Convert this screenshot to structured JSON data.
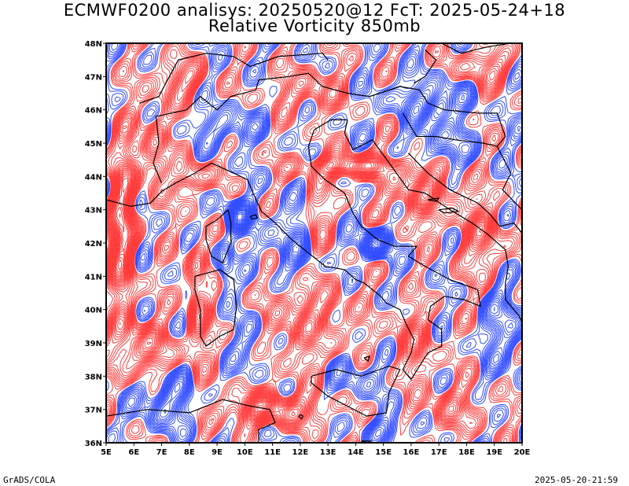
{
  "title_line1": "ECMWF0200 analisys: 20250520@12 FcT: 2025-05-24+18",
  "title_line2": "Relative Vorticity 850mb",
  "footer_left": "GrADS/COLA",
  "footer_right": "2025-05-20-21:59",
  "map": {
    "lon_range": [
      5,
      20
    ],
    "lat_range": [
      36,
      48
    ],
    "lon_ticks": [
      "5E",
      "6E",
      "7E",
      "8E",
      "9E",
      "10E",
      "11E",
      "12E",
      "13E",
      "14E",
      "15E",
      "16E",
      "17E",
      "18E",
      "19E",
      "20E"
    ],
    "lat_ticks": [
      "36N",
      "37N",
      "38N",
      "39N",
      "40N",
      "41N",
      "42N",
      "43N",
      "44N",
      "45N",
      "46N",
      "47N",
      "48N"
    ],
    "colors": {
      "positive_vorticity": "#ff3b3b",
      "negative_vorticity": "#2f4bff",
      "coastline": "#000000",
      "frame": "#000000"
    }
  }
}
